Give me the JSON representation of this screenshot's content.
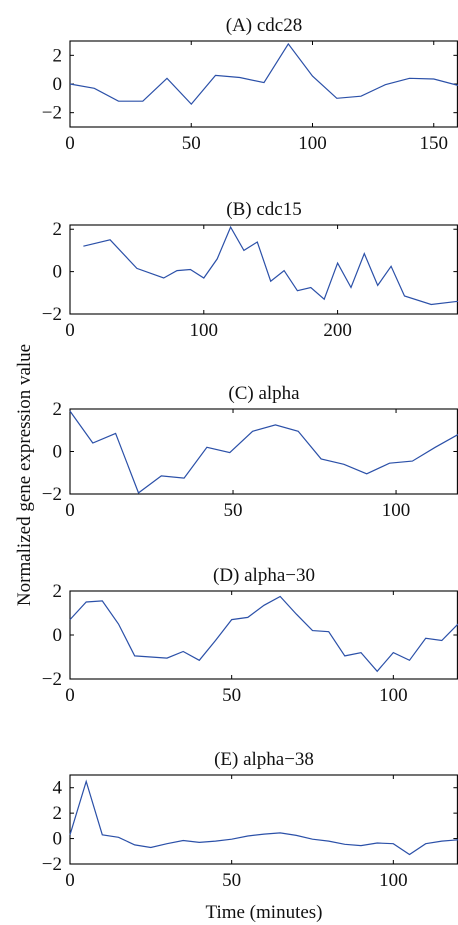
{
  "ylabel": "Normalized gene expression value",
  "xlabel": "Time (minutes)",
  "chart_data": [
    {
      "type": "line",
      "title": "(A) cdc28",
      "xlim": [
        0,
        160
      ],
      "ylim": [
        -3,
        3
      ],
      "xticks": [
        0,
        50,
        100,
        150
      ],
      "yticks": [
        -2,
        0,
        2
      ],
      "series": [
        {
          "color": "#2b50a8",
          "x": [
            0,
            10,
            20,
            30,
            40,
            50,
            60,
            70,
            80,
            90,
            100,
            110,
            120,
            130,
            140,
            150,
            160
          ],
          "y": [
            0.0,
            -0.3,
            -1.2,
            -1.2,
            0.4,
            -1.4,
            0.6,
            0.45,
            0.1,
            2.8,
            0.55,
            -1.0,
            -0.85,
            -0.05,
            0.4,
            0.35,
            -0.1
          ]
        }
      ]
    },
    {
      "type": "line",
      "title": "(B) cdc15",
      "xlim": [
        0,
        290
      ],
      "ylim": [
        -2,
        2.2
      ],
      "xticks": [
        0,
        100,
        200
      ],
      "yticks": [
        -2,
        0,
        2
      ],
      "series": [
        {
          "color": "#2b50a8",
          "x": [
            10,
            30,
            50,
            70,
            80,
            90,
            100,
            110,
            120,
            130,
            140,
            150,
            160,
            170,
            180,
            190,
            200,
            210,
            220,
            230,
            240,
            250,
            270,
            290
          ],
          "y": [
            1.2,
            1.5,
            0.15,
            -0.3,
            0.05,
            0.1,
            -0.3,
            0.6,
            2.1,
            1.0,
            1.4,
            -0.45,
            0.05,
            -0.9,
            -0.75,
            -1.3,
            0.4,
            -0.75,
            0.85,
            -0.65,
            0.25,
            -1.15,
            -1.55,
            -1.4
          ]
        }
      ]
    },
    {
      "type": "line",
      "title": "(C) alpha",
      "xlim": [
        0,
        119
      ],
      "ylim": [
        -2,
        2
      ],
      "xticks": [
        0,
        50,
        100
      ],
      "yticks": [
        -2,
        0,
        2
      ],
      "series": [
        {
          "color": "#2b50a8",
          "x": [
            0,
            7,
            14,
            21,
            28,
            35,
            42,
            49,
            56,
            63,
            70,
            77,
            84,
            91,
            98,
            105,
            112,
            119
          ],
          "y": [
            1.9,
            0.4,
            0.85,
            -1.95,
            -1.15,
            -1.25,
            0.2,
            -0.05,
            0.95,
            1.25,
            0.95,
            -0.35,
            -0.6,
            -1.05,
            -0.55,
            -0.45,
            0.2,
            0.8
          ]
        }
      ]
    },
    {
      "type": "line",
      "title": "(D) alpha−30",
      "xlim": [
        0,
        120
      ],
      "ylim": [
        -2,
        2
      ],
      "xticks": [
        0,
        50,
        100
      ],
      "yticks": [
        -2,
        0,
        2
      ],
      "series": [
        {
          "color": "#2b50a8",
          "x": [
            0,
            5,
            10,
            15,
            20,
            30,
            35,
            40,
            45,
            50,
            55,
            60,
            65,
            70,
            75,
            80,
            85,
            90,
            95,
            100,
            105,
            110,
            115,
            120
          ],
          "y": [
            0.7,
            1.5,
            1.55,
            0.5,
            -0.95,
            -1.05,
            -0.75,
            -1.15,
            -0.25,
            0.7,
            0.8,
            1.35,
            1.75,
            0.95,
            0.2,
            0.15,
            -0.95,
            -0.8,
            -1.65,
            -0.8,
            -1.15,
            -0.15,
            -0.25,
            0.5
          ]
        }
      ]
    },
    {
      "type": "line",
      "title": "(E) alpha−38",
      "xlim": [
        0,
        120
      ],
      "ylim": [
        -2,
        5
      ],
      "xticks": [
        0,
        50,
        100
      ],
      "yticks": [
        -2,
        0,
        2,
        4
      ],
      "series": [
        {
          "color": "#2b50a8",
          "x": [
            0,
            5,
            10,
            15,
            20,
            25,
            30,
            35,
            40,
            45,
            50,
            55,
            60,
            65,
            70,
            75,
            80,
            85,
            90,
            95,
            100,
            105,
            110,
            115,
            120
          ],
          "y": [
            0.3,
            4.5,
            0.3,
            0.1,
            -0.5,
            -0.7,
            -0.4,
            -0.15,
            -0.3,
            -0.2,
            -0.05,
            0.2,
            0.35,
            0.45,
            0.25,
            -0.05,
            -0.2,
            -0.45,
            -0.55,
            -0.35,
            -0.4,
            -1.25,
            -0.4,
            -0.2,
            -0.1
          ]
        }
      ]
    }
  ]
}
